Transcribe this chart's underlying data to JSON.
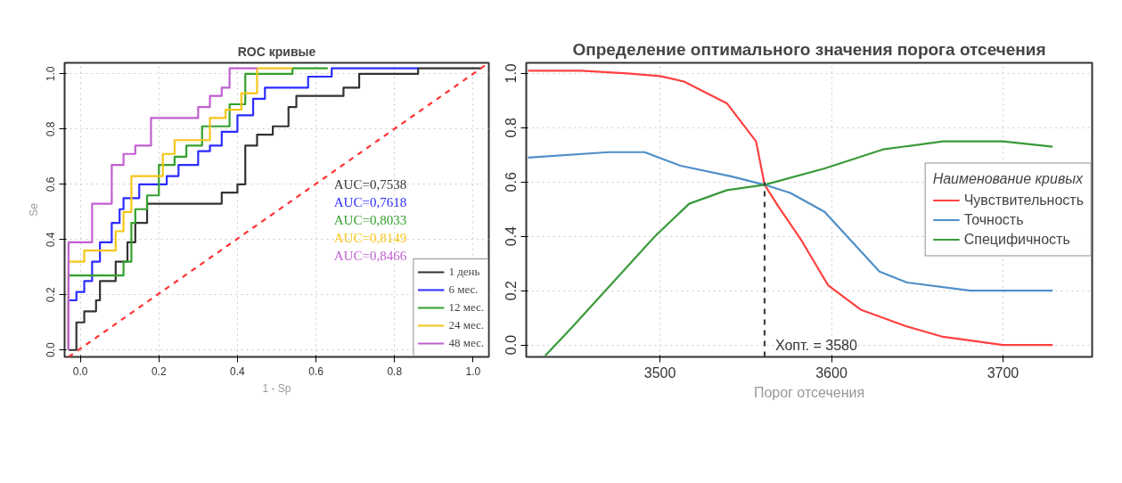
{
  "chart_data": [
    {
      "type": "line",
      "title": "ROC кривые",
      "xlabel": "1 - Sp",
      "ylabel": "Se",
      "xlim": [
        -0.04,
        1.04
      ],
      "ylim": [
        -0.025,
        1.04
      ],
      "xticks": [
        {
          "value": 0,
          "label": "0.0"
        },
        {
          "value": 0.2,
          "label": "0.2"
        },
        {
          "value": 0.4,
          "label": "0.4"
        },
        {
          "value": 0.6,
          "label": "0.6"
        },
        {
          "value": 0.8,
          "label": "0.8"
        },
        {
          "value": 1,
          "label": "1.0"
        }
      ],
      "yticks": [
        {
          "value": 0,
          "label": "0.0"
        },
        {
          "value": 0.2,
          "label": "0.2"
        },
        {
          "value": 0.4,
          "label": "0.4"
        },
        {
          "value": 0.6,
          "label": "0.6"
        },
        {
          "value": 0.8,
          "label": "0.8"
        },
        {
          "value": 1,
          "label": "1.0"
        }
      ],
      "grid": true,
      "legend": "bottom right",
      "series": [
        {
          "name": "1 день",
          "color": "#333333",
          "x": [
            -0.03,
            -0.01,
            -0.01,
            0.01,
            0.01,
            0.04,
            0.04,
            0.05,
            0.05,
            0.09,
            0.09,
            0.12,
            0.12,
            0.14,
            0.14,
            0.17,
            0.17,
            0.36,
            0.36,
            0.4,
            0.4,
            0.42,
            0.42,
            0.45,
            0.45,
            0.49,
            0.49,
            0.53,
            0.53,
            0.55,
            0.55,
            0.67,
            0.67,
            0.71,
            0.71,
            0.86,
            0.86,
            1.02
          ],
          "values": [
            0,
            0,
            0.1,
            0.1,
            0.14,
            0.14,
            0.18,
            0.18,
            0.25,
            0.25,
            0.32,
            0.32,
            0.39,
            0.39,
            0.46,
            0.46,
            0.53,
            0.53,
            0.57,
            0.57,
            0.6,
            0.6,
            0.74,
            0.74,
            0.78,
            0.78,
            0.81,
            0.81,
            0.88,
            0.88,
            0.92,
            0.92,
            0.95,
            0.95,
            1.0,
            1.0,
            1.02,
            1.02
          ]
        },
        {
          "name": "6 мес.",
          "color": "#2b2bff",
          "x": [
            -0.03,
            -0.03,
            -0.01,
            -0.01,
            0.01,
            0.01,
            0.03,
            0.03,
            0.05,
            0.05,
            0.08,
            0.08,
            0.1,
            0.1,
            0.11,
            0.11,
            0.15,
            0.15,
            0.22,
            0.22,
            0.25,
            0.25,
            0.3,
            0.3,
            0.33,
            0.33,
            0.36,
            0.36,
            0.4,
            0.4,
            0.44,
            0.44,
            0.47,
            0.47,
            0.58,
            0.58,
            0.64,
            0.64,
            0.86
          ],
          "values": [
            0,
            0.18,
            0.18,
            0.21,
            0.21,
            0.25,
            0.25,
            0.32,
            0.32,
            0.39,
            0.39,
            0.46,
            0.46,
            0.51,
            0.51,
            0.55,
            0.55,
            0.6,
            0.6,
            0.63,
            0.63,
            0.67,
            0.67,
            0.72,
            0.72,
            0.74,
            0.74,
            0.79,
            0.79,
            0.85,
            0.85,
            0.91,
            0.91,
            0.95,
            0.95,
            0.99,
            0.99,
            1.02,
            1.02
          ]
        },
        {
          "name": "12 мес.",
          "color": "#33a02c",
          "x": [
            -0.03,
            -0.03,
            0.11,
            0.11,
            0.13,
            0.13,
            0.14,
            0.14,
            0.17,
            0.17,
            0.2,
            0.2,
            0.24,
            0.24,
            0.27,
            0.27,
            0.31,
            0.31,
            0.38,
            0.38,
            0.42,
            0.42,
            0.54,
            0.54,
            0.63
          ],
          "values": [
            0,
            0.27,
            0.27,
            0.32,
            0.32,
            0.46,
            0.46,
            0.51,
            0.51,
            0.56,
            0.56,
            0.67,
            0.67,
            0.7,
            0.7,
            0.74,
            0.74,
            0.81,
            0.81,
            0.89,
            0.89,
            1.0,
            1.0,
            1.02,
            1.02
          ]
        },
        {
          "name": "24 мес.",
          "color": "#f5c518",
          "x": [
            -0.03,
            -0.03,
            0.01,
            0.01,
            0.09,
            0.09,
            0.11,
            0.11,
            0.13,
            0.13,
            0.21,
            0.21,
            0.24,
            0.24,
            0.33,
            0.33,
            0.37,
            0.37,
            0.41,
            0.41,
            0.45,
            0.45,
            0.54
          ],
          "values": [
            0,
            0.32,
            0.32,
            0.36,
            0.36,
            0.43,
            0.43,
            0.5,
            0.5,
            0.63,
            0.63,
            0.71,
            0.71,
            0.76,
            0.76,
            0.84,
            0.84,
            0.87,
            0.87,
            0.93,
            0.93,
            1.02,
            1.02
          ]
        },
        {
          "name": "48 мес.",
          "color": "#c060d0",
          "x": [
            -0.03,
            -0.03,
            0.03,
            0.03,
            0.08,
            0.08,
            0.11,
            0.11,
            0.14,
            0.14,
            0.18,
            0.18,
            0.3,
            0.3,
            0.33,
            0.33,
            0.36,
            0.36,
            0.38,
            0.38,
            0.45
          ],
          "values": [
            0,
            0.39,
            0.39,
            0.53,
            0.53,
            0.67,
            0.67,
            0.71,
            0.71,
            0.74,
            0.74,
            0.84,
            0.84,
            0.88,
            0.88,
            0.92,
            0.92,
            0.95,
            0.95,
            1.02,
            1.02
          ]
        },
        {
          "color": "#ff3333",
          "line_style": "dashed",
          "x": [
            -0.03,
            1.03
          ],
          "values": [
            -0.025,
            1.03
          ]
        }
      ],
      "annotations": [
        "AUC=0,7538",
        "AUC=0,7618",
        "AUC=0,8033",
        "AUC=0,8149",
        "AUC=0,8466"
      ]
    },
    {
      "type": "line",
      "title": "Определение оптимального значения порога отсечения",
      "xlabel": "Порог отсечения",
      "xlim": [
        3422,
        3752
      ],
      "ylim": [
        -0.044,
        1.039
      ],
      "xticks": [
        3500,
        3600,
        3700
      ],
      "yticks": [
        {
          "value": 0,
          "label": "0.0"
        },
        {
          "value": 0.2,
          "label": "0.2"
        },
        {
          "value": 0.4,
          "label": "0.4"
        },
        {
          "value": 0.6,
          "label": "0.6"
        },
        {
          "value": 0.8,
          "label": "0.8"
        },
        {
          "value": 1,
          "label": "1.0"
        }
      ],
      "grid": true,
      "legend": "right",
      "legend_title": "Наименование кривых",
      "series": [
        {
          "name": "Чувствительность",
          "color": "#ff4040",
          "x": [
            3423,
            3454,
            3481,
            3500,
            3514,
            3539,
            3556,
            3561,
            3569,
            3582,
            3598,
            3617,
            3643,
            3665,
            3700,
            3729
          ],
          "values": [
            1.01,
            1.01,
            1.0,
            0.99,
            0.97,
            0.89,
            0.75,
            0.59,
            0.51,
            0.39,
            0.22,
            0.13,
            0.07,
            0.03,
            0.0,
            0.0
          ]
        },
        {
          "name": "Точность",
          "color": "#4f8fc8",
          "x": [
            3423,
            3470,
            3491,
            3512,
            3542,
            3561,
            3576,
            3596,
            3628,
            3644,
            3681,
            3729
          ],
          "values": [
            0.69,
            0.71,
            0.71,
            0.66,
            0.62,
            0.59,
            0.56,
            0.49,
            0.27,
            0.23,
            0.2,
            0.2
          ]
        },
        {
          "name": "Специфичность",
          "color": "#3a9a3a",
          "x": [
            3433,
            3448,
            3497,
            3517,
            3539,
            3561,
            3596,
            3630,
            3665,
            3700,
            3729
          ],
          "values": [
            -0.04,
            0.06,
            0.4,
            0.52,
            0.57,
            0.59,
            0.65,
            0.72,
            0.75,
            0.75,
            0.73
          ]
        },
        {
          "color": "#404040",
          "line_style": "dashed",
          "x": [
            3561,
            3561
          ],
          "values": [
            -0.044,
            0.6
          ]
        }
      ],
      "annotations": [
        {
          "text": "Хопт. = 3580",
          "x": 3561,
          "y": 0.0
        }
      ]
    }
  ]
}
